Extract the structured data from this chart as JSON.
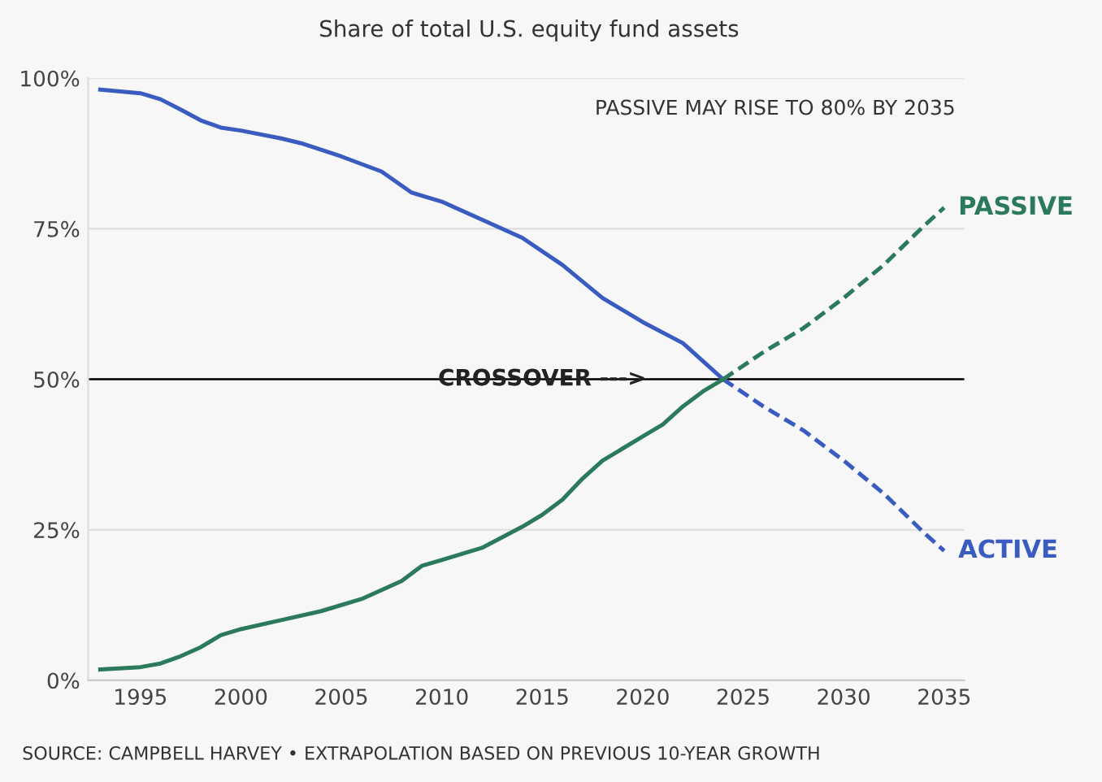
{
  "chart_data": {
    "type": "line",
    "title": "Share of total U.S. equity fund assets",
    "xlim": [
      1992.4,
      2036
    ],
    "xticks": [
      1995,
      2000,
      2005,
      2010,
      2015,
      2020,
      2025,
      2030,
      2035
    ],
    "ylim": [
      0,
      100
    ],
    "yticks": [
      {
        "value": 0,
        "label": "0%"
      },
      {
        "value": 25,
        "label": "25%"
      },
      {
        "value": 50,
        "label": "50%"
      },
      {
        "value": 75,
        "label": "75%"
      },
      {
        "value": 100,
        "label": "100%"
      }
    ],
    "grid": "y",
    "legend": false,
    "marker": "none",
    "series": [
      {
        "color": "#3a5bbf",
        "line_style": "solid",
        "x": [
          1993,
          1995,
          1996,
          1997,
          1998,
          1999,
          2000,
          2002,
          2003,
          2005,
          2007,
          2008.5,
          2010,
          2012,
          2014,
          2016,
          2018,
          2020,
          2022,
          2023,
          2024
        ],
        "values": [
          98.1,
          97.5,
          96.5,
          94.8,
          93,
          91.8,
          91.3,
          90,
          89.2,
          87,
          84.5,
          81,
          79.5,
          76.5,
          73.5,
          69,
          63.5,
          59.5,
          56,
          53,
          50
        ]
      },
      {
        "name": "ACTIVE",
        "color": "#3a5bbf",
        "line_style": "dashed",
        "x": [
          2024,
          2026,
          2028,
          2030,
          2032,
          2034,
          2035
        ],
        "values": [
          50,
          45.5,
          41.5,
          36.5,
          31,
          24.5,
          21.5
        ]
      },
      {
        "color": "#2b7a5b",
        "line_style": "solid",
        "x": [
          1993,
          1995,
          1996,
          1997,
          1998,
          1999,
          2000,
          2002,
          2004,
          2006,
          2008,
          2009,
          2010,
          2012,
          2014,
          2015,
          2016,
          2017,
          2018,
          2019,
          2020,
          2021,
          2022,
          2023,
          2024
        ],
        "values": [
          1.8,
          2.2,
          2.8,
          4,
          5.5,
          7.5,
          8.5,
          10,
          11.5,
          13.5,
          16.5,
          19,
          20,
          22,
          25.5,
          27.5,
          30,
          33.5,
          36.5,
          38.5,
          40.5,
          42.5,
          45.5,
          48,
          50
        ]
      },
      {
        "name": "PASSIVE",
        "color": "#2b7a5b",
        "line_style": "dashed",
        "x": [
          2024,
          2026,
          2028,
          2030,
          2032,
          2034,
          2035
        ],
        "values": [
          50,
          54.5,
          58.5,
          63.5,
          69,
          75.5,
          78.5
        ]
      }
    ],
    "ref_lines": [
      {
        "axis": "y",
        "value": 50,
        "color": "#000000",
        "line_style": "solid"
      }
    ],
    "annotations": [
      {
        "text": "CROSSOVER --->",
        "x": 2015,
        "y": 50
      },
      "PASSIVE MAY RISE TO 80% BY 2035",
      "SOURCE: CAMPBELL HARVEY • EXTRAPOLATION BASED ON PREVIOUS 10-YEAR GROWTH"
    ]
  }
}
